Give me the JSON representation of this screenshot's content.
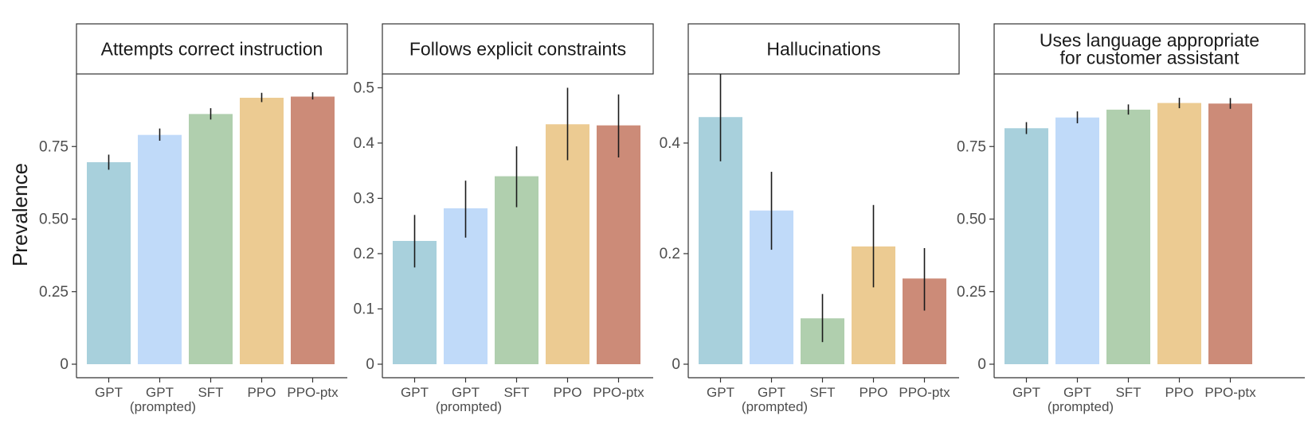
{
  "chart_data": {
    "type": "bar",
    "ylabel": "Prevalence",
    "categories": [
      "GPT",
      "GPT",
      "SFT",
      "PPO",
      "PPO-ptx"
    ],
    "category_sublabels": [
      "",
      "(prompted)",
      "",
      "",
      ""
    ],
    "colors": [
      "#a8d0dc",
      "#c0daf9",
      "#b0cfae",
      "#eccb92",
      "#cc8b78"
    ],
    "error_bar_color": "#1a1a1a",
    "panels": [
      {
        "title": [
          "Attempts correct instruction"
        ],
        "ylim": [
          0,
          1.0
        ],
        "yticks": [
          0,
          0.25,
          0.5,
          0.75
        ],
        "ytick_labels": [
          "0",
          "0.25",
          "0.50",
          "0.75"
        ],
        "values": [
          0.696,
          0.79,
          0.862,
          0.918,
          0.922
        ],
        "err_low": [
          0.67,
          0.77,
          0.843,
          0.903,
          0.912
        ],
        "err_high": [
          0.722,
          0.812,
          0.882,
          0.935,
          0.937
        ]
      },
      {
        "title": [
          "Follows explicit constraints"
        ],
        "ylim": [
          0,
          0.525
        ],
        "yticks": [
          0,
          0.1,
          0.2,
          0.3,
          0.4,
          0.5
        ],
        "ytick_labels": [
          "0",
          "0.1",
          "0.2",
          "0.3",
          "0.4",
          "0.5"
        ],
        "values": [
          0.223,
          0.282,
          0.34,
          0.434,
          0.432
        ],
        "err_low": [
          0.175,
          0.229,
          0.284,
          0.369,
          0.374
        ],
        "err_high": [
          0.27,
          0.332,
          0.394,
          0.5,
          0.488
        ]
      },
      {
        "title": [
          "Hallucinations"
        ],
        "ylim": [
          0,
          0.525
        ],
        "yticks": [
          0,
          0.2,
          0.4
        ],
        "ytick_labels": [
          "0",
          "0.2",
          "0.4"
        ],
        "values": [
          0.447,
          0.278,
          0.083,
          0.213,
          0.155
        ],
        "err_low": [
          0.367,
          0.207,
          0.04,
          0.139,
          0.097
        ],
        "err_high": [
          0.525,
          0.348,
          0.127,
          0.288,
          0.21
        ]
      },
      {
        "title": [
          "Uses language appropriate",
          "for customer assistant"
        ],
        "ylim": [
          0,
          1.0
        ],
        "yticks": [
          0,
          0.25,
          0.5,
          0.75
        ],
        "ytick_labels": [
          "0",
          "0.25",
          "0.50",
          "0.75"
        ],
        "values": [
          0.813,
          0.85,
          0.877,
          0.9,
          0.898
        ],
        "err_low": [
          0.793,
          0.83,
          0.86,
          0.882,
          0.88
        ],
        "err_high": [
          0.834,
          0.871,
          0.895,
          0.918,
          0.917
        ]
      }
    ]
  }
}
